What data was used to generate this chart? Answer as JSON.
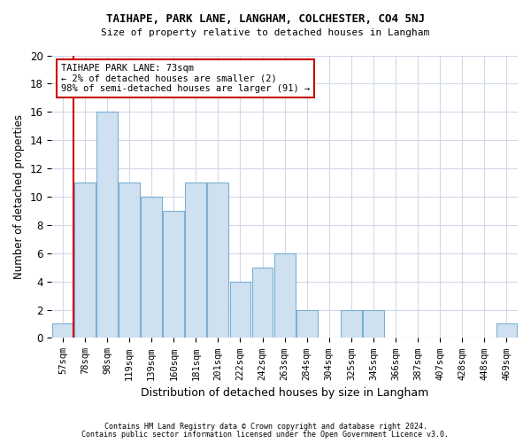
{
  "title": "TAIHAPE, PARK LANE, LANGHAM, COLCHESTER, CO4 5NJ",
  "subtitle": "Size of property relative to detached houses in Langham",
  "xlabel": "Distribution of detached houses by size in Langham",
  "ylabel": "Number of detached properties",
  "categories": [
    "57sqm",
    "78sqm",
    "98sqm",
    "119sqm",
    "139sqm",
    "160sqm",
    "181sqm",
    "201sqm",
    "222sqm",
    "242sqm",
    "263sqm",
    "284sqm",
    "304sqm",
    "325sqm",
    "345sqm",
    "366sqm",
    "387sqm",
    "407sqm",
    "428sqm",
    "448sqm",
    "469sqm"
  ],
  "values": [
    1,
    11,
    16,
    11,
    10,
    9,
    11,
    11,
    4,
    5,
    6,
    2,
    0,
    2,
    2,
    0,
    0,
    0,
    0,
    0,
    1
  ],
  "bar_color": "#cfe0f0",
  "bar_edge_color": "#7ab0d4",
  "highlight_color": "#cc0000",
  "highlight_index": 1,
  "annotation_title": "TAIHAPE PARK LANE: 73sqm",
  "annotation_line1": "← 2% of detached houses are smaller (2)",
  "annotation_line2": "98% of semi-detached houses are larger (91) →",
  "annotation_box_color": "#ffffff",
  "annotation_box_edge": "#cc0000",
  "ylim": [
    0,
    20
  ],
  "yticks": [
    0,
    2,
    4,
    6,
    8,
    10,
    12,
    14,
    16,
    18,
    20
  ],
  "footer1": "Contains HM Land Registry data © Crown copyright and database right 2024.",
  "footer2": "Contains public sector information licensed under the Open Government Licence v3.0.",
  "bg_color": "#ffffff",
  "plot_bg_color": "#ffffff",
  "grid_color": "#d0d8e8"
}
